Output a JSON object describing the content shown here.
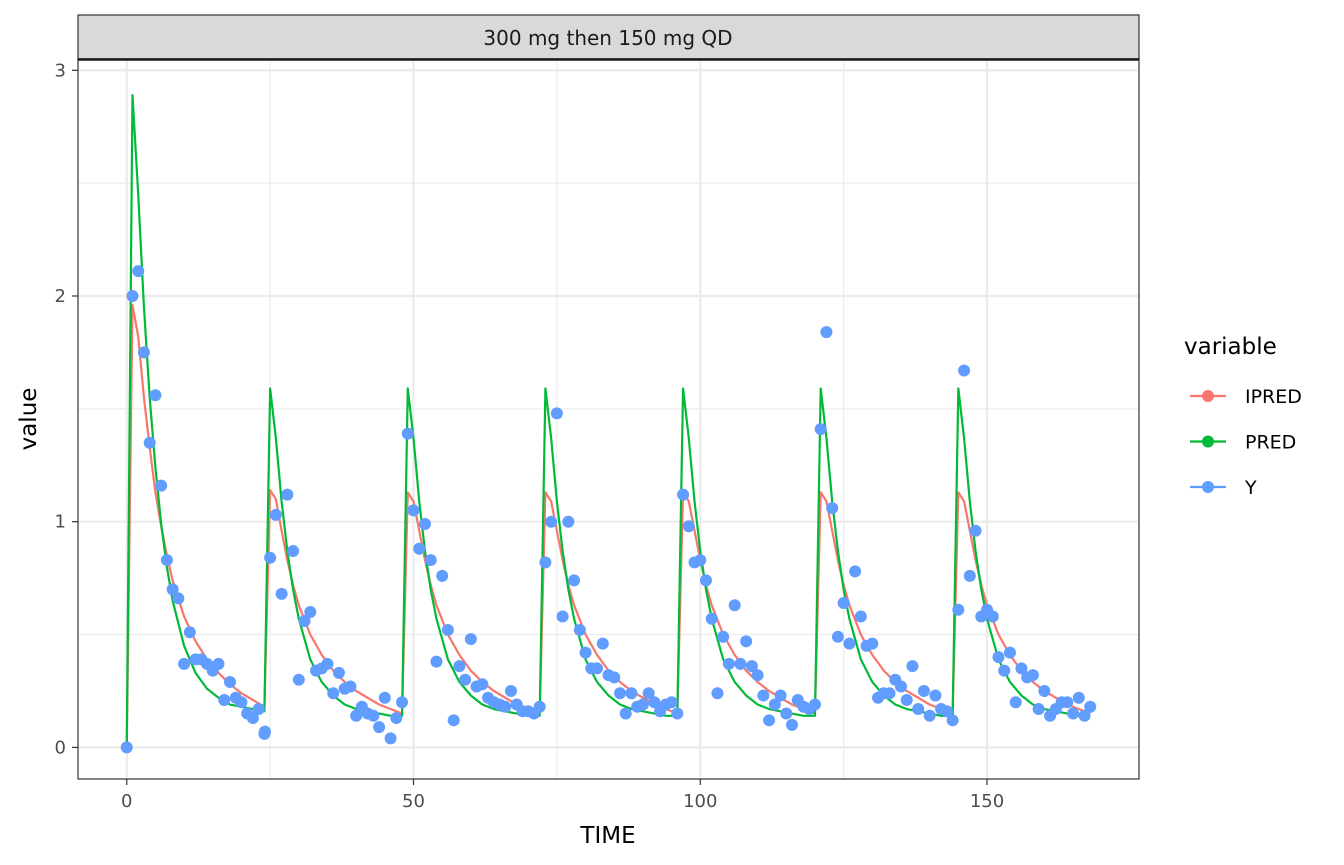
{
  "chart_data": {
    "type": "line",
    "facet_label": "300 mg then 150 mg QD",
    "xlabel": "TIME",
    "ylabel": "value",
    "xlim": [
      -8.5,
      176.5
    ],
    "ylim": [
      -0.14,
      3.05
    ],
    "x_ticks": [
      0,
      50,
      100,
      150
    ],
    "x_minor_ticks": [
      25,
      75,
      125
    ],
    "y_ticks": [
      0,
      1,
      2,
      3
    ],
    "y_minor_ticks": [
      0.5,
      1.5,
      2.5
    ],
    "grid": true,
    "legend_title": "variable",
    "legend_position": "right",
    "colors": {
      "IPRED": "#F8766D",
      "PRED": "#00BA38",
      "Y": "#619CFF",
      "strip_fill": "#D9D9D9",
      "grid": "#EBEBEB",
      "panel_border": "#333333"
    },
    "series": [
      {
        "name": "IPRED",
        "kind": "line",
        "x": [
          0,
          1,
          2,
          3,
          4,
          5,
          6,
          7,
          8,
          10,
          12,
          14,
          16,
          18,
          20,
          22,
          24,
          25,
          26,
          27,
          28,
          29,
          30,
          32,
          34,
          36,
          38,
          40,
          42,
          44,
          46,
          48,
          49,
          50,
          51,
          52,
          53,
          54,
          56,
          58,
          60,
          62,
          64,
          66,
          68,
          70,
          72,
          73,
          74,
          75,
          76,
          77,
          78,
          80,
          82,
          84,
          86,
          88,
          90,
          92,
          94,
          96,
          97,
          98,
          99,
          100,
          101,
          102,
          104,
          106,
          108,
          110,
          112,
          114,
          116,
          118,
          120,
          121,
          122,
          123,
          124,
          125,
          126,
          128,
          130,
          132,
          134,
          136,
          138,
          140,
          142,
          144,
          145,
          146,
          147,
          148,
          149,
          150,
          152,
          154,
          156,
          158,
          160,
          162,
          164,
          166,
          168
        ],
        "values": [
          0,
          1.96,
          1.82,
          1.55,
          1.33,
          1.13,
          0.98,
          0.85,
          0.74,
          0.58,
          0.47,
          0.39,
          0.33,
          0.28,
          0.24,
          0.21,
          0.18,
          1.14,
          1.1,
          0.96,
          0.83,
          0.72,
          0.63,
          0.5,
          0.41,
          0.34,
          0.29,
          0.25,
          0.22,
          0.19,
          0.17,
          0.15,
          1.13,
          1.09,
          0.96,
          0.83,
          0.72,
          0.63,
          0.5,
          0.41,
          0.34,
          0.29,
          0.25,
          0.22,
          0.19,
          0.17,
          0.15,
          1.13,
          1.09,
          0.96,
          0.83,
          0.72,
          0.63,
          0.5,
          0.41,
          0.34,
          0.29,
          0.25,
          0.22,
          0.19,
          0.17,
          0.15,
          1.13,
          1.09,
          0.96,
          0.83,
          0.72,
          0.63,
          0.5,
          0.41,
          0.34,
          0.29,
          0.25,
          0.22,
          0.19,
          0.17,
          0.15,
          1.13,
          1.09,
          0.96,
          0.83,
          0.72,
          0.63,
          0.5,
          0.41,
          0.34,
          0.29,
          0.25,
          0.22,
          0.19,
          0.17,
          0.15,
          1.13,
          1.09,
          0.96,
          0.83,
          0.72,
          0.63,
          0.5,
          0.41,
          0.34,
          0.29,
          0.25,
          0.22,
          0.19,
          0.17,
          0.15
        ]
      },
      {
        "name": "PRED",
        "kind": "line",
        "x": [
          0,
          1,
          2,
          3,
          4,
          5,
          6,
          7,
          8,
          10,
          12,
          14,
          16,
          18,
          20,
          22,
          24,
          25,
          26,
          27,
          28,
          29,
          30,
          32,
          34,
          36,
          38,
          40,
          42,
          44,
          46,
          48,
          49,
          50,
          51,
          52,
          53,
          54,
          56,
          58,
          60,
          62,
          64,
          66,
          68,
          70,
          72,
          73,
          74,
          75,
          76,
          77,
          78,
          80,
          82,
          84,
          86,
          88,
          90,
          92,
          94,
          96,
          97,
          98,
          99,
          100,
          101,
          102,
          104,
          106,
          108,
          110,
          112,
          114,
          116,
          118,
          120,
          121,
          122,
          123,
          124,
          125,
          126,
          128,
          130,
          132,
          134,
          136,
          138,
          140,
          142,
          144,
          145,
          146,
          147,
          148,
          149,
          150,
          152,
          154,
          156,
          158,
          160,
          162,
          164,
          166,
          168
        ],
        "values": [
          0,
          2.89,
          2.45,
          1.95,
          1.55,
          1.24,
          0.99,
          0.8,
          0.65,
          0.45,
          0.33,
          0.26,
          0.22,
          0.19,
          0.18,
          0.17,
          0.16,
          1.59,
          1.37,
          1.09,
          0.87,
          0.7,
          0.57,
          0.39,
          0.29,
          0.23,
          0.19,
          0.17,
          0.16,
          0.15,
          0.14,
          0.14,
          1.59,
          1.37,
          1.09,
          0.87,
          0.7,
          0.57,
          0.39,
          0.29,
          0.23,
          0.19,
          0.17,
          0.16,
          0.15,
          0.14,
          0.14,
          1.59,
          1.37,
          1.09,
          0.87,
          0.7,
          0.57,
          0.39,
          0.29,
          0.23,
          0.19,
          0.17,
          0.16,
          0.15,
          0.14,
          0.14,
          1.59,
          1.37,
          1.09,
          0.87,
          0.7,
          0.57,
          0.39,
          0.29,
          0.23,
          0.19,
          0.17,
          0.16,
          0.15,
          0.14,
          0.14,
          1.59,
          1.37,
          1.09,
          0.87,
          0.7,
          0.57,
          0.39,
          0.29,
          0.23,
          0.19,
          0.17,
          0.16,
          0.15,
          0.14,
          0.14,
          1.59,
          1.37,
          1.09,
          0.87,
          0.7,
          0.57,
          0.39,
          0.29,
          0.23,
          0.19,
          0.17,
          0.16,
          0.15,
          0.14,
          0.14
        ]
      },
      {
        "name": "Y",
        "kind": "points",
        "x": [
          0,
          1,
          2,
          3,
          4,
          5,
          6,
          7,
          8,
          9,
          10,
          11,
          12,
          13,
          14,
          15,
          16,
          17,
          18,
          19,
          20,
          21,
          22,
          23,
          24,
          24.1,
          25,
          26,
          27,
          28,
          29,
          30,
          31,
          32,
          33,
          34,
          35,
          36,
          37,
          38,
          39,
          40,
          41,
          42,
          43,
          44,
          45,
          46,
          47,
          48,
          49,
          50,
          51,
          52,
          53,
          54,
          55,
          56,
          57,
          58,
          59,
          60,
          61,
          62,
          63,
          64,
          65,
          66,
          67,
          68,
          69,
          70,
          71,
          72,
          73,
          74,
          75,
          76,
          77,
          78,
          79,
          80,
          81,
          82,
          83,
          84,
          85,
          86,
          87,
          88,
          89,
          90,
          91,
          92,
          93,
          94,
          95,
          96,
          97,
          98,
          99,
          100,
          101,
          102,
          103,
          104,
          105,
          106,
          107,
          108,
          109,
          110,
          111,
          112,
          113,
          114,
          115,
          116,
          117,
          118,
          119,
          120,
          121,
          122,
          123,
          124,
          125,
          126,
          127,
          128,
          129,
          130,
          131,
          132,
          133,
          134,
          135,
          136,
          137,
          138,
          139,
          140,
          141,
          142,
          143,
          144,
          145,
          146,
          147,
          148,
          149,
          150,
          151,
          152,
          153,
          154,
          155,
          156,
          157,
          158,
          159,
          160,
          161,
          162,
          163,
          164,
          165,
          166,
          167,
          168
        ],
        "values": [
          0,
          2.0,
          2.11,
          1.75,
          1.35,
          1.56,
          1.16,
          0.83,
          0.7,
          0.66,
          0.37,
          0.51,
          0.39,
          0.39,
          0.37,
          0.34,
          0.37,
          0.21,
          0.29,
          0.22,
          0.2,
          0.15,
          0.13,
          0.17,
          0.06,
          0.07,
          0.84,
          1.03,
          0.68,
          1.12,
          0.87,
          0.3,
          0.56,
          0.6,
          0.34,
          0.35,
          0.37,
          0.24,
          0.33,
          0.26,
          0.27,
          0.14,
          0.18,
          0.15,
          0.14,
          0.09,
          0.22,
          0.04,
          0.13,
          0.2,
          1.39,
          1.05,
          0.88,
          0.99,
          0.83,
          0.38,
          0.76,
          0.52,
          0.12,
          0.36,
          0.3,
          0.48,
          0.27,
          0.28,
          0.22,
          0.2,
          0.19,
          0.18,
          0.25,
          0.19,
          0.16,
          0.16,
          0.15,
          0.18,
          0.82,
          1.0,
          1.48,
          0.58,
          1.0,
          0.74,
          0.52,
          0.42,
          0.35,
          0.35,
          0.46,
          0.32,
          0.31,
          0.24,
          0.15,
          0.24,
          0.18,
          0.19,
          0.24,
          0.2,
          0.16,
          0.19,
          0.2,
          0.15,
          1.12,
          0.98,
          0.82,
          0.83,
          0.74,
          0.57,
          0.24,
          0.49,
          0.37,
          0.63,
          0.37,
          0.47,
          0.36,
          0.32,
          0.23,
          0.12,
          0.19,
          0.23,
          0.15,
          0.1,
          0.21,
          0.18,
          0.17,
          0.19,
          1.41,
          1.84,
          1.06,
          0.49,
          0.64,
          0.46,
          0.78,
          0.58,
          0.45,
          0.46,
          0.22,
          0.24,
          0.24,
          0.3,
          0.27,
          0.21,
          0.36,
          0.17,
          0.25,
          0.14,
          0.23,
          0.17,
          0.16,
          0.12,
          0.61,
          1.67,
          0.76,
          0.96,
          0.58,
          0.61,
          0.58,
          0.4,
          0.34,
          0.42,
          0.2,
          0.35,
          0.31,
          0.32,
          0.17,
          0.25,
          0.14,
          0.17,
          0.2,
          0.2,
          0.15,
          0.22,
          0.14,
          0.18
        ]
      }
    ]
  }
}
